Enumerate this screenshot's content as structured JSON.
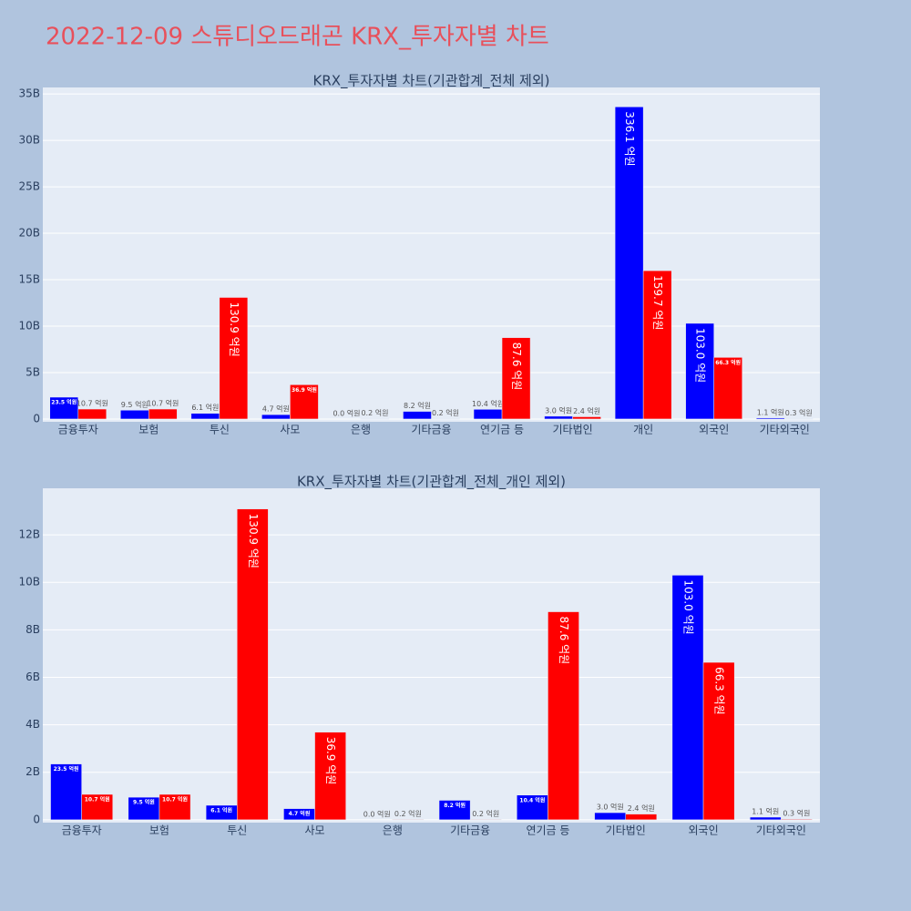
{
  "title": "2022-12-09 스튜디오드래곤 KRX_투자자별 차트",
  "chart_data": [
    {
      "type": "bar",
      "title": "KRX_투자자별 차트(기관합계_전체 제외)",
      "categories": [
        "금융투자",
        "보험",
        "투신",
        "사모",
        "은행",
        "기타금융",
        "연기금 등",
        "기타법인",
        "개인",
        "외국인",
        "기타외국인"
      ],
      "series": [
        {
          "color": "#0000ff",
          "values": [
            2.35,
            0.95,
            0.61,
            0.47,
            0.0,
            0.82,
            1.04,
            0.3,
            33.61,
            10.3,
            0.11
          ],
          "value_labels": [
            "23.5 억원",
            "9.5 억원",
            "6.1 억원",
            "4.7 억원",
            "0.0 억원",
            "8.2 억원",
            "10.4 억원",
            "3.0 억원",
            "336.1 억원",
            "103.0 억원",
            "1.1 억원"
          ]
        },
        {
          "color": "#ff0000",
          "values": [
            1.07,
            1.07,
            13.09,
            3.69,
            0.02,
            0.02,
            8.76,
            0.24,
            15.97,
            6.63,
            0.03
          ],
          "value_labels": [
            "10.7 억원",
            "10.7 억원",
            "130.9 억원",
            "36.9 억원",
            "0.2 억원",
            "0.2 억원",
            "87.6 억원",
            "2.4 억원",
            "159.7 억원",
            "66.3 억원",
            "0.3 억원"
          ]
        }
      ],
      "ylim": [
        -0.3,
        35.7
      ],
      "yticks": [
        0,
        {
          "value": 5,
          "label": "5B"
        },
        {
          "value": 10,
          "label": "10B"
        },
        {
          "value": 15,
          "label": "15B"
        },
        {
          "value": 20,
          "label": "20B"
        },
        {
          "value": 25,
          "label": "25B"
        },
        {
          "value": 30,
          "label": "30B"
        },
        {
          "value": 35,
          "label": "35B"
        }
      ],
      "grid": true
    },
    {
      "type": "bar",
      "title": "KRX_투자자별 차트(기관합계_전체_개인 제외)",
      "categories": [
        "금융투자",
        "보험",
        "투신",
        "사모",
        "은행",
        "기타금융",
        "연기금 등",
        "기타법인",
        "외국인",
        "기타외국인"
      ],
      "series": [
        {
          "color": "#0000ff",
          "values": [
            2.35,
            0.95,
            0.61,
            0.47,
            0.0,
            0.82,
            1.04,
            0.3,
            10.3,
            0.11
          ],
          "value_labels": [
            "23.5 억원",
            "9.5 억원",
            "6.1 억원",
            "4.7 억원",
            "0.0 억원",
            "8.2 억원",
            "10.4 억원",
            "3.0 억원",
            "103.0 억원",
            "1.1 억원"
          ]
        },
        {
          "color": "#ff0000",
          "values": [
            1.07,
            1.07,
            13.09,
            3.69,
            0.02,
            0.02,
            8.76,
            0.24,
            6.63,
            0.03
          ],
          "value_labels": [
            "10.7 억원",
            "10.7 억원",
            "130.9 억원",
            "36.9 억원",
            "0.2 억원",
            "0.2 억원",
            "87.6 억원",
            "2.4 억원",
            "66.3 억원",
            "0.3 억원"
          ]
        }
      ],
      "ylim": [
        -0.12,
        13.96
      ],
      "yticks": [
        0,
        {
          "value": 2,
          "label": "2B"
        },
        {
          "value": 4,
          "label": "4B"
        },
        {
          "value": 6,
          "label": "6B"
        },
        {
          "value": 8,
          "label": "8B"
        },
        {
          "value": 10,
          "label": "10B"
        },
        {
          "value": 12,
          "label": "12B"
        }
      ],
      "grid": true
    }
  ]
}
